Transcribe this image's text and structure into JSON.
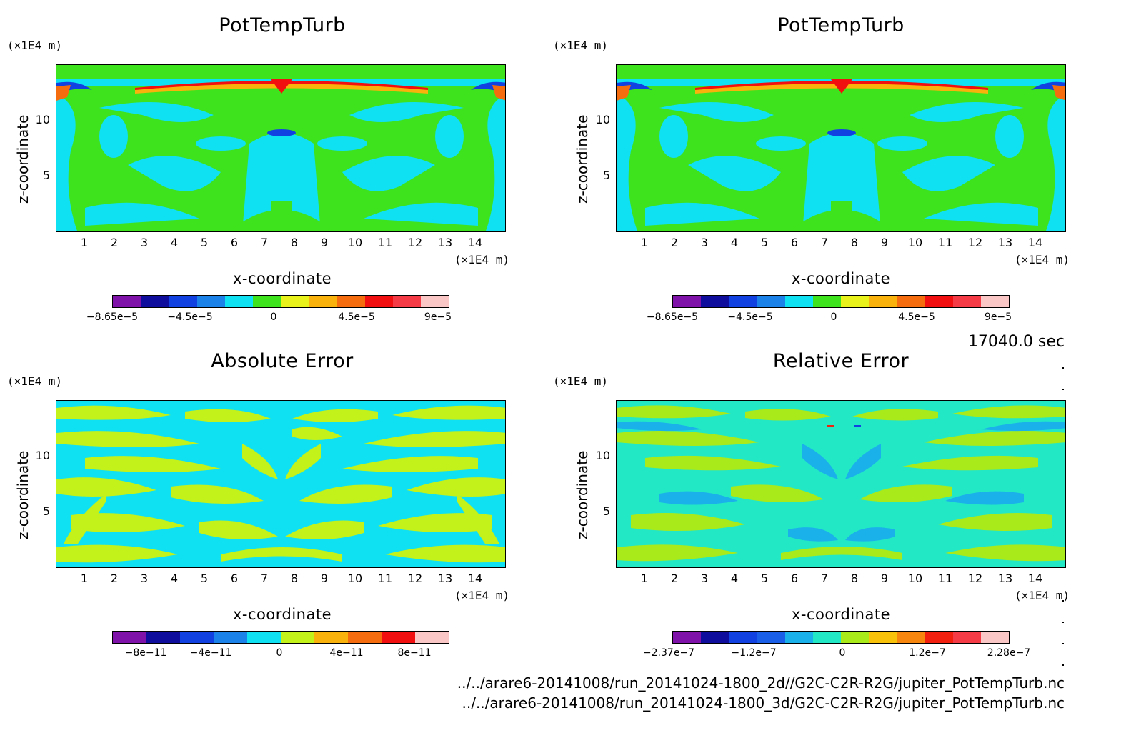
{
  "chart_data": [
    {
      "type": "heatmap",
      "title": "PotTempTurb",
      "xlabel": "x-coordinate",
      "ylabel": "z-coordinate",
      "x_unit": "(×1E4 m)",
      "y_unit": "(×1E4 m)",
      "x_ticks": [
        "1",
        "2",
        "3",
        "4",
        "5",
        "6",
        "7",
        "8",
        "9",
        "10",
        "11",
        "12",
        "13",
        "14"
      ],
      "y_ticks": [
        "5",
        "10"
      ],
      "colorbar": {
        "colors": [
          "#7f12a8",
          "#0e0d9c",
          "#1241e2",
          "#1a82e8",
          "#0fe0f2",
          "#3fe31d",
          "#e9f21a",
          "#f8b20b",
          "#f46c0d",
          "#f20f0f",
          "#f53b45",
          "#fac6c6"
        ],
        "labels": [
          "−8.65e−5",
          "−4.5e−5",
          "0",
          "4.5e−5",
          "9e−5"
        ]
      }
    },
    {
      "type": "heatmap",
      "title": "PotTempTurb",
      "xlabel": "x-coordinate",
      "ylabel": "z-coordinate",
      "x_unit": "(×1E4 m)",
      "y_unit": "(×1E4 m)",
      "x_ticks": [
        "1",
        "2",
        "3",
        "4",
        "5",
        "6",
        "7",
        "8",
        "9",
        "10",
        "11",
        "12",
        "13",
        "14"
      ],
      "y_ticks": [
        "5",
        "10"
      ],
      "colorbar": {
        "colors": [
          "#7f12a8",
          "#0e0d9c",
          "#1241e2",
          "#1a82e8",
          "#0fe0f2",
          "#3fe31d",
          "#e9f21a",
          "#f8b20b",
          "#f46c0d",
          "#f20f0f",
          "#f53b45",
          "#fac6c6"
        ],
        "labels": [
          "−8.65e−5",
          "−4.5e−5",
          "0",
          "4.5e−5",
          "9e−5"
        ]
      }
    },
    {
      "type": "heatmap",
      "title": "Absolute Error",
      "xlabel": "x-coordinate",
      "ylabel": "z-coordinate",
      "x_unit": "(×1E4 m)",
      "y_unit": "(×1E4 m)",
      "x_ticks": [
        "1",
        "2",
        "3",
        "4",
        "5",
        "6",
        "7",
        "8",
        "9",
        "10",
        "11",
        "12",
        "13",
        "14"
      ],
      "y_ticks": [
        "5",
        "10"
      ],
      "colorbar": {
        "colors": [
          "#7f12a8",
          "#0e0d9c",
          "#1241e2",
          "#1a82e8",
          "#0fe0f2",
          "#c2f21a",
          "#f8b20b",
          "#f46c0d",
          "#f20f0f",
          "#fac6c6"
        ],
        "labels": [
          "−8e−11",
          "−4e−11",
          "0",
          "4e−11",
          "8e−11"
        ]
      }
    },
    {
      "type": "heatmap",
      "title": "Relative Error",
      "xlabel": "x-coordinate",
      "ylabel": "z-coordinate",
      "x_unit": "(×1E4 m)",
      "y_unit": "(×1E4 m)",
      "x_ticks": [
        "1",
        "2",
        "3",
        "4",
        "5",
        "6",
        "7",
        "8",
        "9",
        "10",
        "11",
        "12",
        "13",
        "14"
      ],
      "y_ticks": [
        "5",
        "10"
      ],
      "colorbar": {
        "colors": [
          "#7f12a8",
          "#0e0d9c",
          "#1241e2",
          "#1a5fe8",
          "#1ab0ea",
          "#22e8c6",
          "#a8ea1a",
          "#f8c20b",
          "#f6860d",
          "#f2200f",
          "#f53b45",
          "#fac6c6"
        ],
        "labels": [
          "−2.37e−7",
          "−1.2e−7",
          "0",
          "1.2e−7",
          "2.28e−7"
        ]
      }
    }
  ],
  "timestamp": "17040.0 sec",
  "files": [
    "../../arare6-20141008/run_20141024-1800_2d//G2C-C2R-R2G/jupiter_PotTempTurb.nc",
    "../../arare6-20141008/run_20141024-1800_3d/G2C-C2R-R2G/jupiter_PotTempTurb.nc"
  ]
}
